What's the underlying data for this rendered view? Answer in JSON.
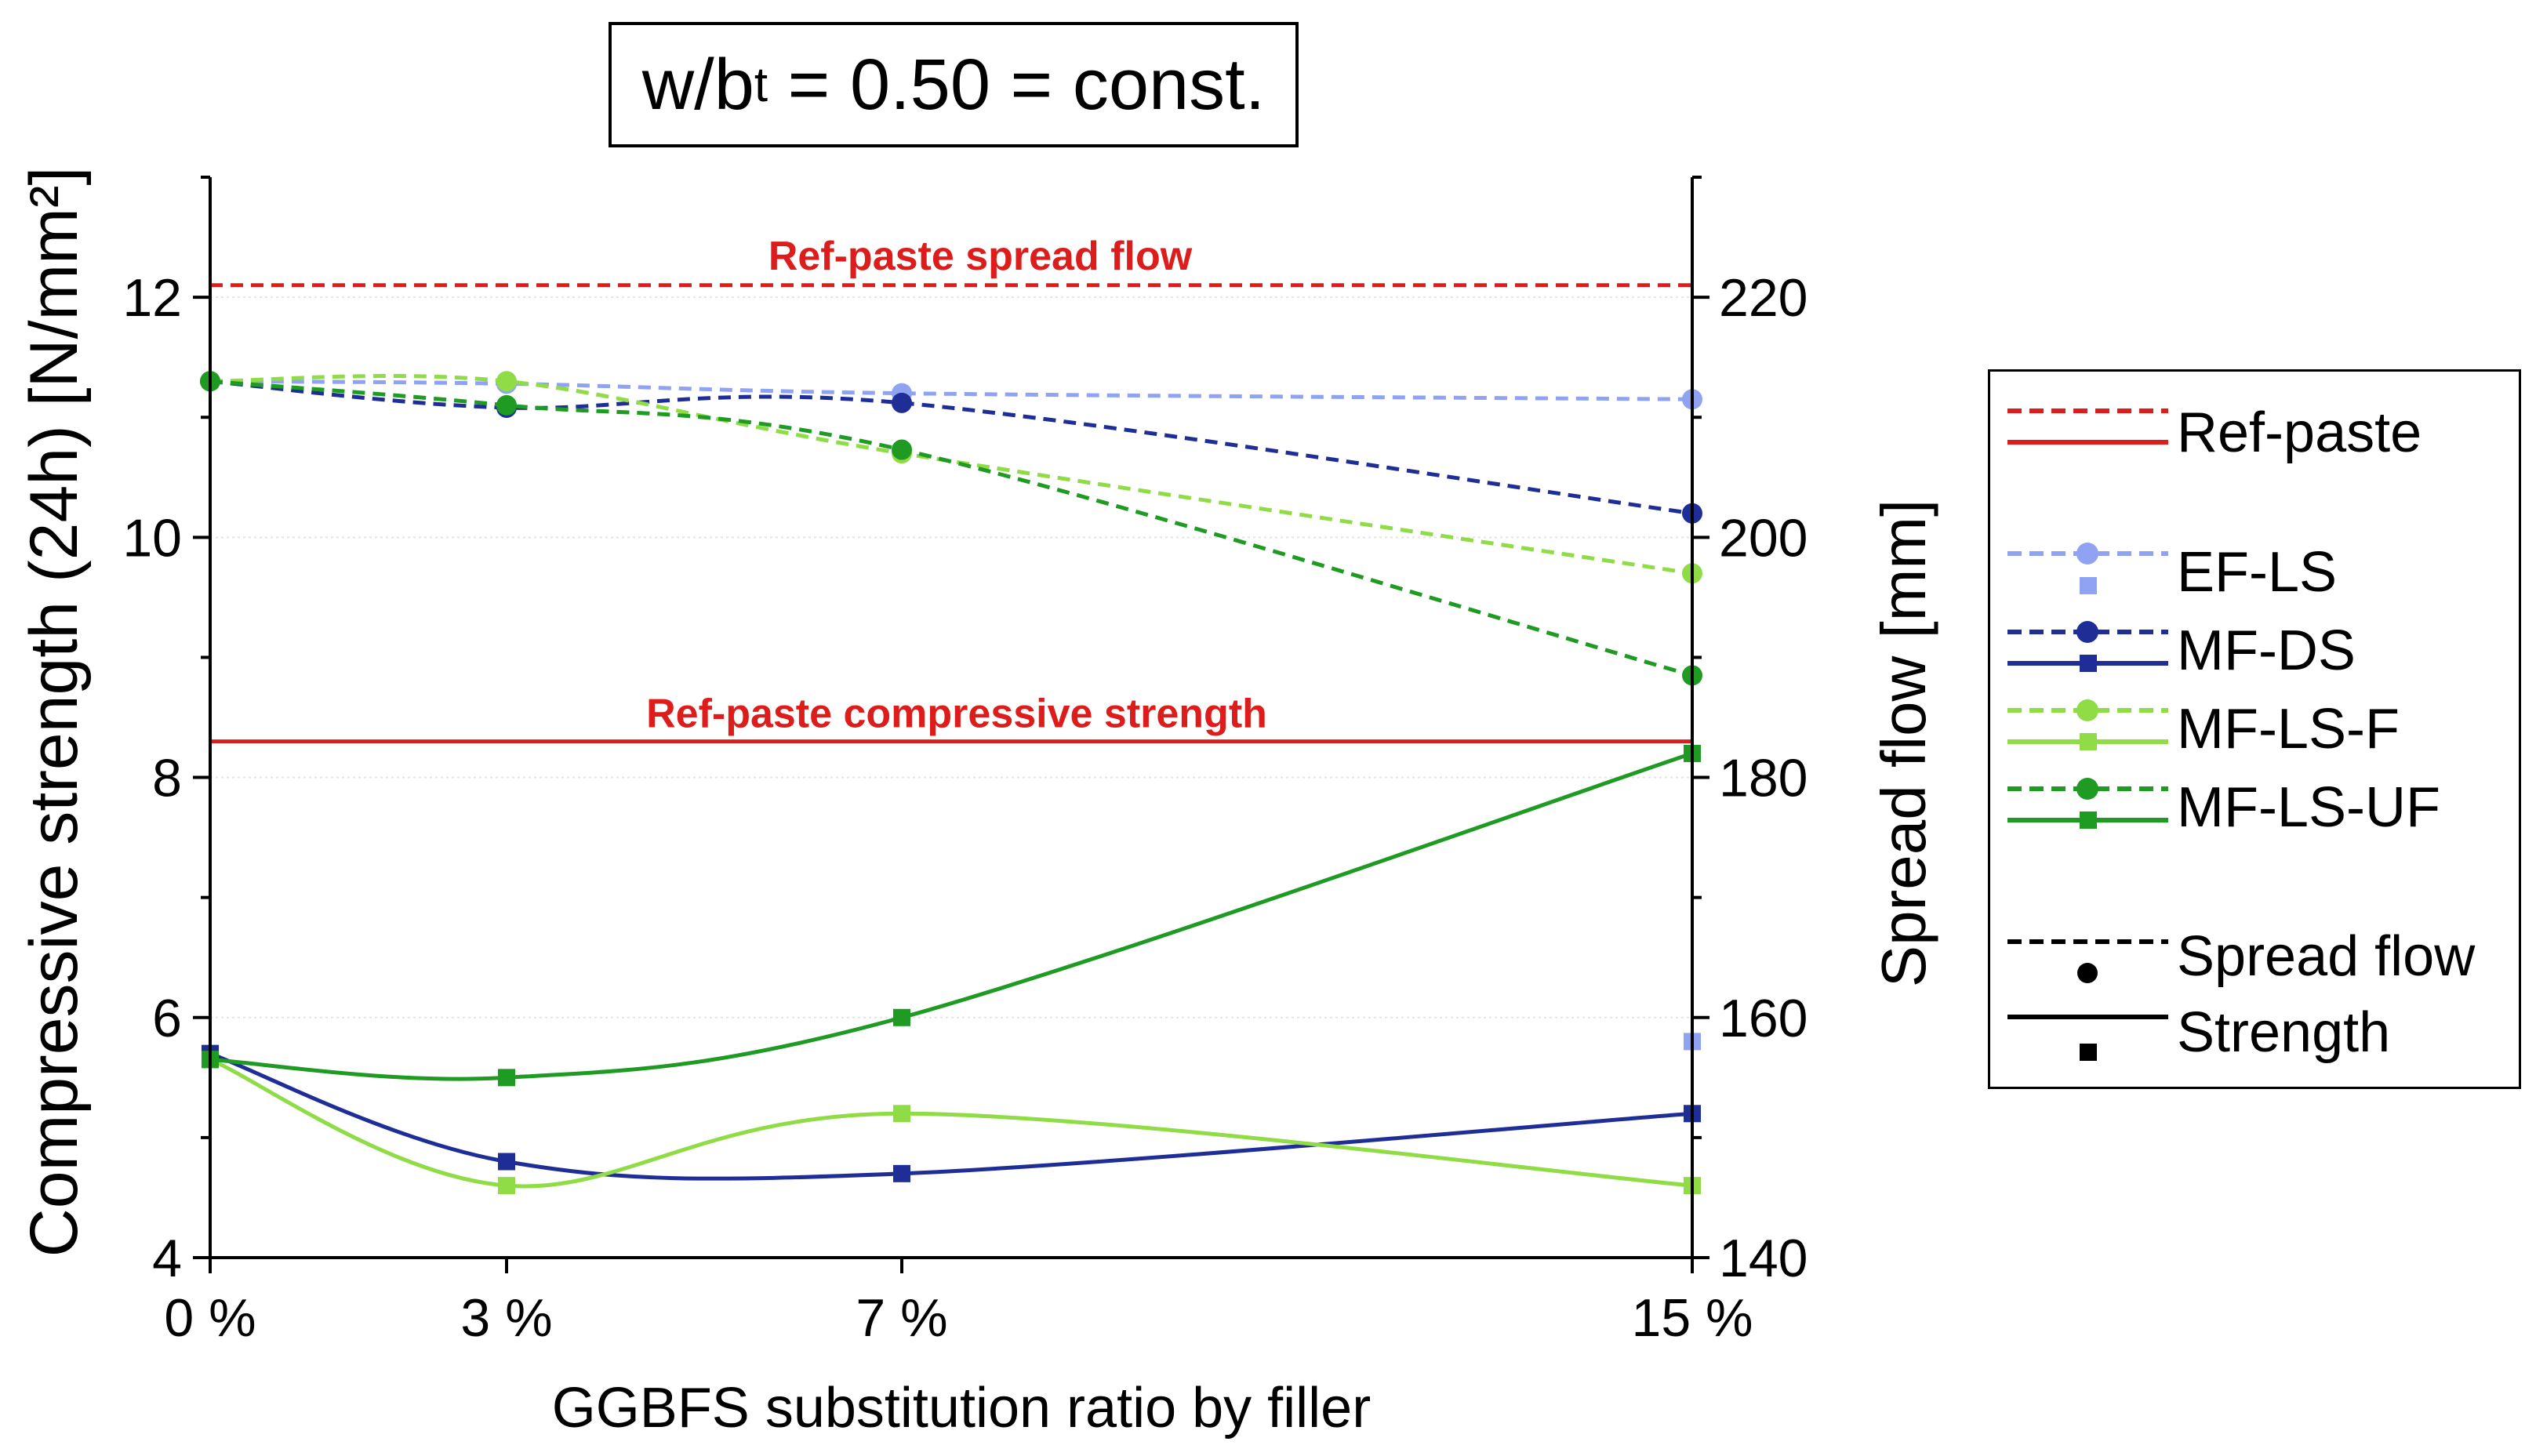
{
  "chart_data": {
    "type": "line",
    "title": "w/b = 0.50 = const.",
    "title_main": "w/b",
    "title_sub": "t",
    "title_tail": " = 0.50 = const.",
    "xlabel": "GGBFS substitution ratio by filler",
    "ylabel": "Compressive strength (24h) [N/mm²]",
    "y2label": "Spread flow [mm]",
    "categories": [
      "0 %",
      "3 %",
      "7 %",
      "15 %"
    ],
    "x": [
      0,
      3,
      7,
      15
    ],
    "xlim": [
      0,
      15
    ],
    "ylim": [
      4,
      13
    ],
    "y2lim": [
      140,
      230
    ],
    "yticks": [
      4,
      6,
      8,
      10,
      12
    ],
    "y2ticks": [
      140,
      160,
      180,
      200,
      220
    ],
    "reference": {
      "spread_flow": {
        "value": 221,
        "axis": "y2",
        "label": "Ref-paste spread flow",
        "style": "dashed"
      },
      "compressive_strength": {
        "value": 8.3,
        "axis": "y",
        "label": "Ref-paste compressive strength",
        "style": "solid"
      }
    },
    "series": [
      {
        "name": "EF-LS",
        "color": "#8fa3f2",
        "spread_flow": [
          213,
          212.8,
          212,
          211.5
        ],
        "strength": [
          5.7,
          null,
          null,
          5.8
        ]
      },
      {
        "name": "MF-DS",
        "color": "#1e2e96",
        "spread_flow": [
          213,
          210.8,
          211.2,
          202
        ],
        "strength": [
          5.7,
          4.8,
          4.7,
          5.2
        ]
      },
      {
        "name": "MF-LS-F",
        "color": "#8fdc46",
        "spread_flow": [
          213,
          213,
          207,
          197
        ],
        "strength": [
          5.65,
          4.6,
          5.2,
          4.6
        ]
      },
      {
        "name": "MF-LS-UF",
        "color": "#1f9a23",
        "spread_flow": [
          213,
          211,
          207.3,
          188.5
        ],
        "strength": [
          5.65,
          5.5,
          6.0,
          8.2
        ]
      }
    ],
    "legend": {
      "position": "right",
      "ref_label": "Ref-paste",
      "ref_color": "#dd1c1c",
      "spread_label": "Spread flow",
      "strength_label": "Strength"
    }
  }
}
